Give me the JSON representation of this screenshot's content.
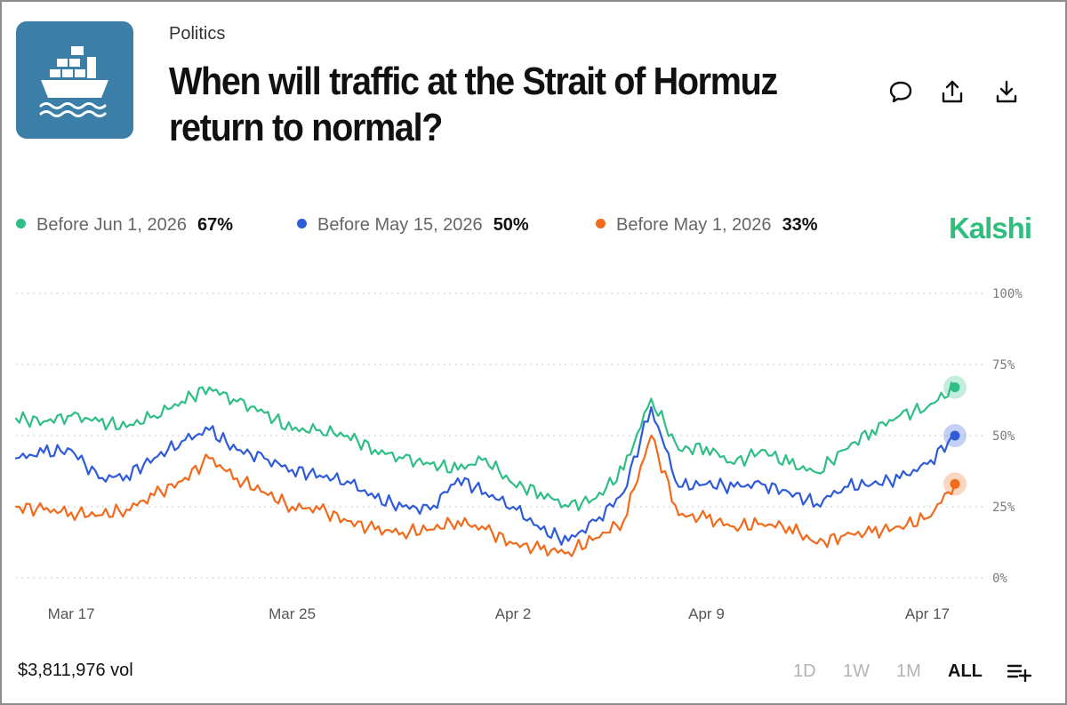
{
  "header": {
    "category": "Politics",
    "title": "When will traffic at the Strait of Hormuz return to normal?",
    "logo_icon": "cargo-ship-icon",
    "actions": [
      {
        "icon": "comment-icon"
      },
      {
        "icon": "share-icon"
      },
      {
        "icon": "download-icon"
      }
    ]
  },
  "legend": [
    {
      "label": "Before Jun 1, 2026",
      "value": "67%",
      "color": "#2fbe86"
    },
    {
      "label": "Before May 15, 2026",
      "value": "50%",
      "color": "#2f5bd9"
    },
    {
      "label": "Before May 1, 2026",
      "value": "33%",
      "color": "#f26a1b"
    }
  ],
  "brand": "Kalshi",
  "footer": {
    "volume": "$3,811,976 vol",
    "ranges": [
      "1D",
      "1W",
      "1M",
      "ALL"
    ],
    "active_range": "ALL",
    "menu_icon": "list-add-icon"
  },
  "chart_data": {
    "type": "line",
    "x_ticks": [
      "Mar 17",
      "Mar 25",
      "Apr 2",
      "Apr 9",
      "Apr 17"
    ],
    "y_ticks": [
      "100%",
      "75%",
      "50%",
      "25%",
      "0%"
    ],
    "ylim": [
      0,
      100
    ],
    "grid": true,
    "x": [
      "Mar 15",
      "Mar 16",
      "Mar 17",
      "Mar 18",
      "Mar 19",
      "Mar 20",
      "Mar 21",
      "Mar 22",
      "Mar 23",
      "Mar 24",
      "Mar 25",
      "Mar 26",
      "Mar 27",
      "Mar 28",
      "Mar 29",
      "Mar 30",
      "Mar 31",
      "Apr 1",
      "Apr 2",
      "Apr 3",
      "Apr 4",
      "Apr 5",
      "Apr 6",
      "Apr 7",
      "Apr 8",
      "Apr 9",
      "Apr 10",
      "Apr 11",
      "Apr 12",
      "Apr 13",
      "Apr 14",
      "Apr 15",
      "Apr 16",
      "Apr 17",
      "Apr 18"
    ],
    "series": [
      {
        "name": "Before Jun 1, 2026",
        "color": "#2fbe86",
        "values": [
          56,
          55,
          57,
          55,
          53,
          57,
          62,
          67,
          62,
          58,
          52,
          52,
          50,
          45,
          42,
          40,
          38,
          42,
          33,
          30,
          25,
          28,
          38,
          63,
          45,
          46,
          40,
          45,
          40,
          37,
          45,
          52,
          57,
          60,
          67
        ]
      },
      {
        "name": "Before May 15, 2026",
        "color": "#2f5bd9",
        "values": [
          42,
          44,
          45,
          35,
          36,
          42,
          48,
          52,
          45,
          42,
          38,
          36,
          34,
          28,
          25,
          24,
          35,
          30,
          25,
          17,
          13,
          20,
          30,
          60,
          32,
          33,
          32,
          33,
          30,
          26,
          32,
          33,
          35,
          40,
          50
        ]
      },
      {
        "name": "Before May 1, 2026",
        "color": "#f26a1b",
        "values": [
          25,
          24,
          23,
          22,
          24,
          29,
          34,
          42,
          35,
          30,
          25,
          24,
          20,
          17,
          16,
          17,
          20,
          17,
          12,
          10,
          9,
          14,
          20,
          50,
          22,
          21,
          18,
          19,
          18,
          12,
          15,
          16,
          18,
          21,
          33
        ]
      }
    ]
  }
}
